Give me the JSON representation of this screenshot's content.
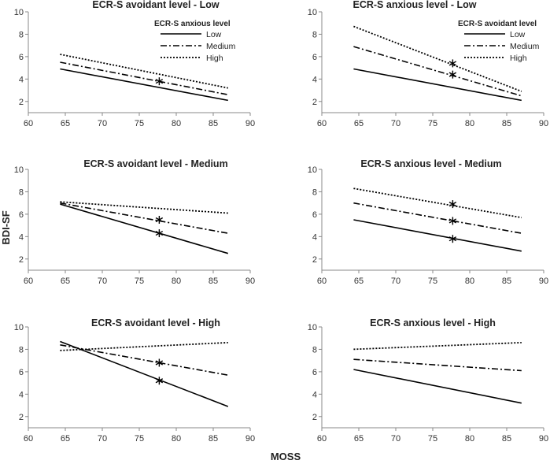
{
  "figure": {
    "ylabel": "BDI-SF",
    "xlabel": "MOSS"
  },
  "legend_items": [
    "Low",
    "Medium",
    "High"
  ],
  "chart_data": [
    {
      "type": "line",
      "title": "ECR-S avoidant level - Low",
      "legend_title": "ECR-S anxious level",
      "xlim": [
        60,
        90
      ],
      "ylim": [
        1,
        10
      ],
      "xticks": [
        60,
        65,
        70,
        75,
        80,
        85,
        90
      ],
      "yticks": [
        2,
        4,
        6,
        8,
        10
      ],
      "series": [
        {
          "name": "Low",
          "style": "solid",
          "x": [
            64.3,
            87
          ],
          "y": [
            4.9,
            2.1
          ]
        },
        {
          "name": "Medium",
          "style": "dashed",
          "x": [
            64.3,
            87
          ],
          "y": [
            5.5,
            2.6
          ]
        },
        {
          "name": "High",
          "style": "dotted",
          "x": [
            64.3,
            87
          ],
          "y": [
            6.2,
            3.2
          ]
        }
      ],
      "markers": [
        {
          "x": 77.7,
          "y": 3.8
        }
      ]
    },
    {
      "type": "line",
      "title": "ECR-S anxious level - Low",
      "legend_title": "ECR-S avoidant level",
      "xlim": [
        60,
        90
      ],
      "ylim": [
        1,
        10
      ],
      "xticks": [
        60,
        65,
        70,
        75,
        80,
        85,
        90
      ],
      "yticks": [
        2,
        4,
        6,
        8,
        10
      ],
      "series": [
        {
          "name": "Low",
          "style": "solid",
          "x": [
            64.3,
            87
          ],
          "y": [
            4.9,
            2.1
          ]
        },
        {
          "name": "Medium",
          "style": "dashed",
          "x": [
            64.3,
            87
          ],
          "y": [
            6.9,
            2.5
          ]
        },
        {
          "name": "High",
          "style": "dotted",
          "x": [
            64.3,
            87
          ],
          "y": [
            8.7,
            2.9
          ]
        }
      ],
      "markers": [
        {
          "x": 77.7,
          "y": 5.4
        },
        {
          "x": 77.7,
          "y": 4.4
        }
      ]
    },
    {
      "type": "line",
      "title": "ECR-S avoidant level - Medium",
      "xlim": [
        60,
        90
      ],
      "ylim": [
        1,
        10
      ],
      "xticks": [
        60,
        65,
        70,
        75,
        80,
        85,
        90
      ],
      "yticks": [
        2,
        4,
        6,
        8,
        10
      ],
      "series": [
        {
          "name": "Low",
          "style": "solid",
          "x": [
            64.3,
            87
          ],
          "y": [
            6.9,
            2.5
          ]
        },
        {
          "name": "Medium",
          "style": "dashed",
          "x": [
            64.3,
            87
          ],
          "y": [
            7.0,
            4.3
          ]
        },
        {
          "name": "High",
          "style": "dotted",
          "x": [
            64.3,
            87
          ],
          "y": [
            7.1,
            6.1
          ]
        }
      ],
      "markers": [
        {
          "x": 77.7,
          "y": 5.5
        },
        {
          "x": 77.7,
          "y": 4.3
        }
      ]
    },
    {
      "type": "line",
      "title": "ECR-S anxious level - Medium",
      "xlim": [
        60,
        90
      ],
      "ylim": [
        1,
        10
      ],
      "xticks": [
        60,
        65,
        70,
        75,
        80,
        85,
        90
      ],
      "yticks": [
        2,
        4,
        6,
        8,
        10
      ],
      "series": [
        {
          "name": "Low",
          "style": "solid",
          "x": [
            64.3,
            87
          ],
          "y": [
            5.5,
            2.7
          ]
        },
        {
          "name": "Medium",
          "style": "dashed",
          "x": [
            64.3,
            87
          ],
          "y": [
            7.0,
            4.3
          ]
        },
        {
          "name": "High",
          "style": "dotted",
          "x": [
            64.3,
            87
          ],
          "y": [
            8.3,
            5.7
          ]
        }
      ],
      "markers": [
        {
          "x": 77.7,
          "y": 6.9
        },
        {
          "x": 77.7,
          "y": 5.4
        },
        {
          "x": 77.7,
          "y": 3.8
        }
      ]
    },
    {
      "type": "line",
      "title": "ECR-S avoidant level - High",
      "xlim": [
        60,
        90
      ],
      "ylim": [
        1,
        10
      ],
      "xticks": [
        60,
        65,
        70,
        75,
        80,
        85,
        90
      ],
      "yticks": [
        2,
        4,
        6,
        8,
        10
      ],
      "series": [
        {
          "name": "Low",
          "style": "solid",
          "x": [
            64.3,
            87
          ],
          "y": [
            8.7,
            2.9
          ]
        },
        {
          "name": "Medium",
          "style": "dashed",
          "x": [
            64.3,
            87
          ],
          "y": [
            8.4,
            5.7
          ]
        },
        {
          "name": "High",
          "style": "dotted",
          "x": [
            64.3,
            87
          ],
          "y": [
            7.9,
            8.6
          ]
        }
      ],
      "markers": [
        {
          "x": 77.7,
          "y": 6.8
        },
        {
          "x": 77.7,
          "y": 5.2
        }
      ]
    },
    {
      "type": "line",
      "title": "ECR-S anxious level - High",
      "xlim": [
        60,
        90
      ],
      "ylim": [
        1,
        10
      ],
      "xticks": [
        60,
        65,
        70,
        75,
        80,
        85,
        90
      ],
      "yticks": [
        2,
        4,
        6,
        8,
        10
      ],
      "series": [
        {
          "name": "Low",
          "style": "solid",
          "x": [
            64.3,
            87
          ],
          "y": [
            6.2,
            3.2
          ]
        },
        {
          "name": "Medium",
          "style": "dashed",
          "x": [
            64.3,
            87
          ],
          "y": [
            7.1,
            6.1
          ]
        },
        {
          "name": "High",
          "style": "dotted",
          "x": [
            64.3,
            87
          ],
          "y": [
            8.0,
            8.6
          ]
        }
      ],
      "markers": []
    }
  ]
}
